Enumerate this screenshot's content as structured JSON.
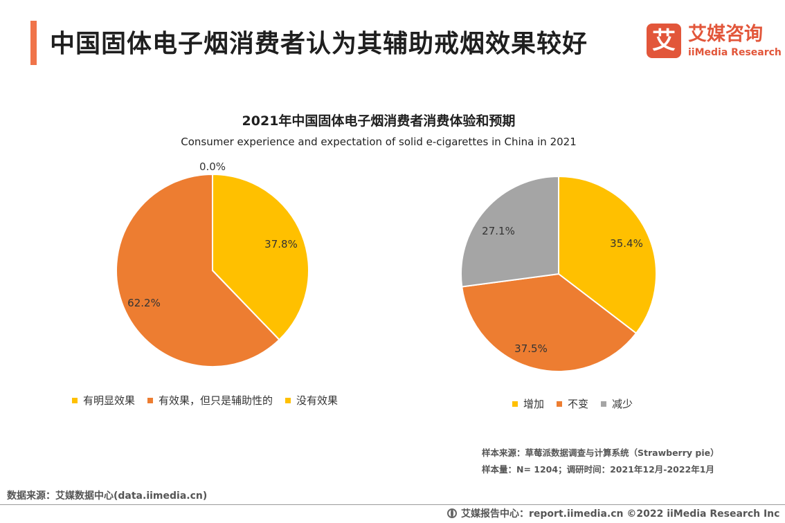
{
  "header": {
    "title": "中国固体电子烟消费者认为其辅助戒烟效果较好",
    "accent_color": "#F0744A"
  },
  "logo": {
    "mark": "艾",
    "cn": "艾媒咨询",
    "en": "iiMedia Research",
    "color": "#E2563A"
  },
  "chart_data": [
    {
      "type": "pie",
      "title": "2021年中国固体电子烟消费者消费体验和预期",
      "subtitle": "Consumer experience and expectation of solid e-cigarettes in China in 2021",
      "categories": [
        "有明显效果",
        "有效果，但只是辅助性的",
        "没有效果"
      ],
      "values": [
        37.8,
        62.2,
        0.0
      ],
      "labels": [
        "37.8%",
        "62.2%",
        "0.0%"
      ],
      "colors": [
        "#FFC000",
        "#ED7D31",
        "#FFC000"
      ],
      "legend": "bottom"
    },
    {
      "type": "pie",
      "categories": [
        "增加",
        "不变",
        "减少"
      ],
      "values": [
        35.4,
        37.5,
        27.1
      ],
      "labels": [
        "35.4%",
        "37.5%",
        "27.1%"
      ],
      "colors": [
        "#FFC000",
        "#ED7D31",
        "#A5A5A5"
      ],
      "legend": "bottom"
    }
  ],
  "notes": {
    "line1": "样本来源：草莓派数据调查与计算系统（Strawberry pie）",
    "line2": "样本量：N= 1204；调研时间：2021年12月-2022年1月"
  },
  "source": "数据来源：艾媒数据中心(data.iimedia.cn)",
  "footer": "艾媒报告中心：report.iimedia.cn  ©2022  iiMedia Research  Inc"
}
